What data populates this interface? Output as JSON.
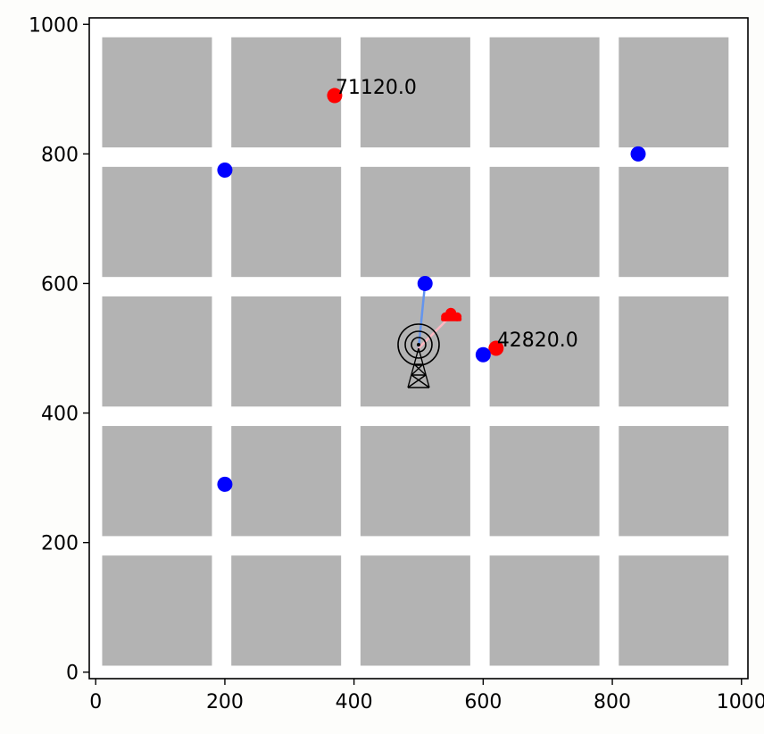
{
  "chart_data": {
    "type": "scatter",
    "title": "",
    "xlabel": "",
    "ylabel": "",
    "xlim": [
      -10,
      1010
    ],
    "ylim": [
      -10,
      1010
    ],
    "xticks": [
      0,
      200,
      400,
      600,
      800,
      1000
    ],
    "yticks": [
      0,
      200,
      400,
      600,
      800,
      1000
    ],
    "grid": false,
    "colors": {
      "block": "#b3b3b3",
      "background": "#ffffff",
      "red_point": "#ff0000",
      "blue_point": "#0000ff",
      "blue_link": "#6495ed",
      "red_link": "#ffb6c1",
      "tower": "#000000"
    },
    "blocks": {
      "x_ranges": [
        [
          10,
          180
        ],
        [
          210,
          380
        ],
        [
          410,
          580
        ],
        [
          610,
          780
        ],
        [
          810,
          980
        ]
      ],
      "y_ranges": [
        [
          10,
          180
        ],
        [
          210,
          380
        ],
        [
          410,
          580
        ],
        [
          610,
          780
        ],
        [
          810,
          980
        ]
      ]
    },
    "tower": {
      "icon": "radio-tower-icon",
      "x": 500,
      "y": 500
    },
    "cloud": {
      "icon": "cloud-icon",
      "x": 550,
      "y": 550
    },
    "series": [
      {
        "color": "red",
        "points": [
          {
            "x": 370,
            "y": 890,
            "label": "71120.0"
          },
          {
            "x": 620,
            "y": 500,
            "label": "42820.0"
          }
        ]
      },
      {
        "color": "blue",
        "points": [
          {
            "x": 200,
            "y": 775
          },
          {
            "x": 840,
            "y": 800
          },
          {
            "x": 510,
            "y": 600
          },
          {
            "x": 600,
            "y": 490
          },
          {
            "x": 200,
            "y": 290
          }
        ]
      }
    ],
    "links": [
      {
        "from": [
          500,
          500
        ],
        "to": [
          510,
          600
        ],
        "color": "blue_link"
      },
      {
        "from": [
          500,
          500
        ],
        "to": [
          550,
          550
        ],
        "color": "red_link"
      }
    ]
  }
}
